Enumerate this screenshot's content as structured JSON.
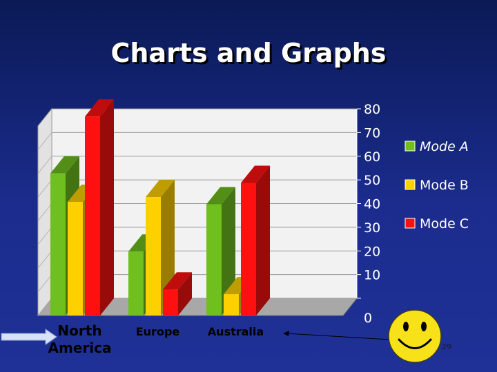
{
  "title": "Charts and Graphs",
  "page_number": "29",
  "chart_data": {
    "type": "bar",
    "categories": [
      "North America",
      "Europe",
      "Australia"
    ],
    "series": [
      {
        "name": "Mode A",
        "values": [
          60,
          27,
          47
        ],
        "color": "#6fbf1f"
      },
      {
        "name": "Mode B",
        "values": [
          48,
          50,
          9
        ],
        "color": "#ffd000"
      },
      {
        "name": "Mode C",
        "values": [
          84,
          11,
          56
        ],
        "color": "#ff1010"
      }
    ],
    "yticks": [
      "80",
      "70",
      "60",
      "50",
      "40",
      "30",
      "20",
      "10",
      "0"
    ],
    "ylim": [
      0,
      80
    ],
    "legend_position": "right",
    "grid": true,
    "three_d": true
  },
  "decorations": {
    "smiley": "smiley-face-icon",
    "arrow": "arrow-right-icon",
    "pointer_line": "pointer-line"
  }
}
